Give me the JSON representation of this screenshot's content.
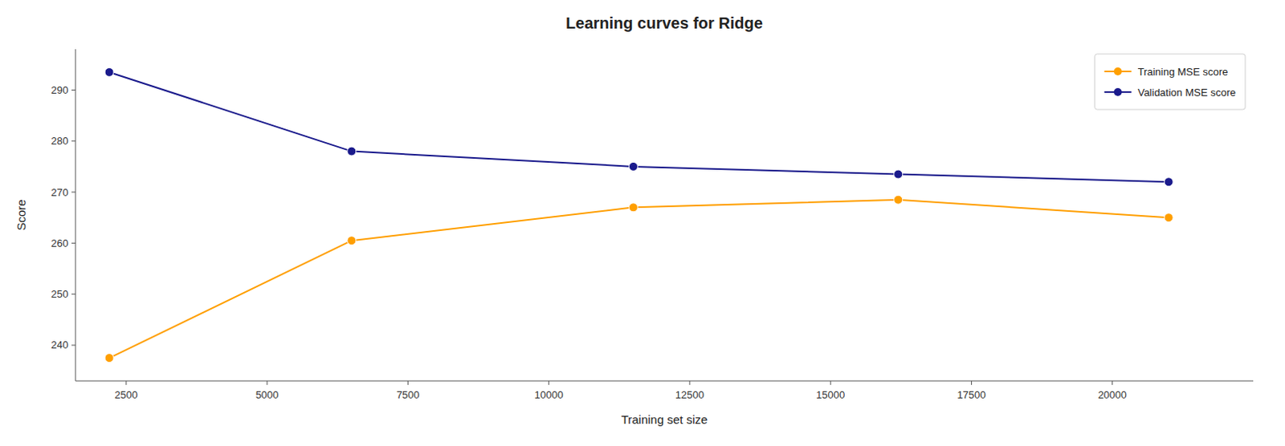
{
  "chart_data": {
    "type": "line",
    "title": "Learning curves for Ridge",
    "x_label": "Training set size",
    "y_label": "Score",
    "x": [
      2200,
      6500,
      11500,
      16200,
      21000
    ],
    "series": [
      {
        "name": "Training MSE score",
        "color": "#ff9f00",
        "marker": "circle",
        "line_style": "solid",
        "values": [
          237.5,
          260.5,
          267.0,
          268.5,
          265.0
        ]
      },
      {
        "name": "Validation MSE score",
        "color": "#1a1a8c",
        "marker": "circle",
        "line_style": "solid",
        "values": [
          293.5,
          278.0,
          275.0,
          273.5,
          272.0
        ]
      }
    ],
    "xlim": [
      1600,
      22500
    ],
    "ylim": [
      233,
      298
    ],
    "xticks": [
      2500,
      5000,
      7500,
      10000,
      12500,
      15000,
      17500,
      20000
    ],
    "yticks": [
      240,
      250,
      260,
      270,
      280,
      290
    ],
    "grid": false,
    "legend": "upper right"
  }
}
